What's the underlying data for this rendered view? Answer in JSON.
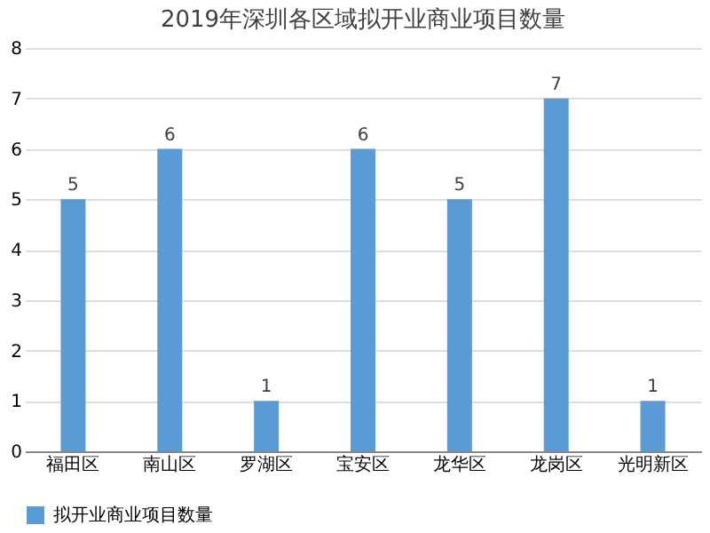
{
  "chart_data": {
    "type": "bar",
    "title": "2019年深圳各区域拟开业商业项目数量",
    "categories": [
      "福田区",
      "南山区",
      "罗湖区",
      "宝安区",
      "龙华区",
      "龙岗区",
      "光明新区"
    ],
    "series": [
      {
        "name": "拟开业商业项目数量",
        "color": "#5b9bd5",
        "values": [
          5,
          6,
          1,
          6,
          5,
          7,
          1
        ]
      }
    ],
    "ylim": [
      0,
      8
    ],
    "yticks": [
      0,
      1,
      2,
      3,
      4,
      5,
      6,
      7,
      8
    ],
    "grid": "y",
    "legend": "bottom",
    "data_labels": true
  }
}
